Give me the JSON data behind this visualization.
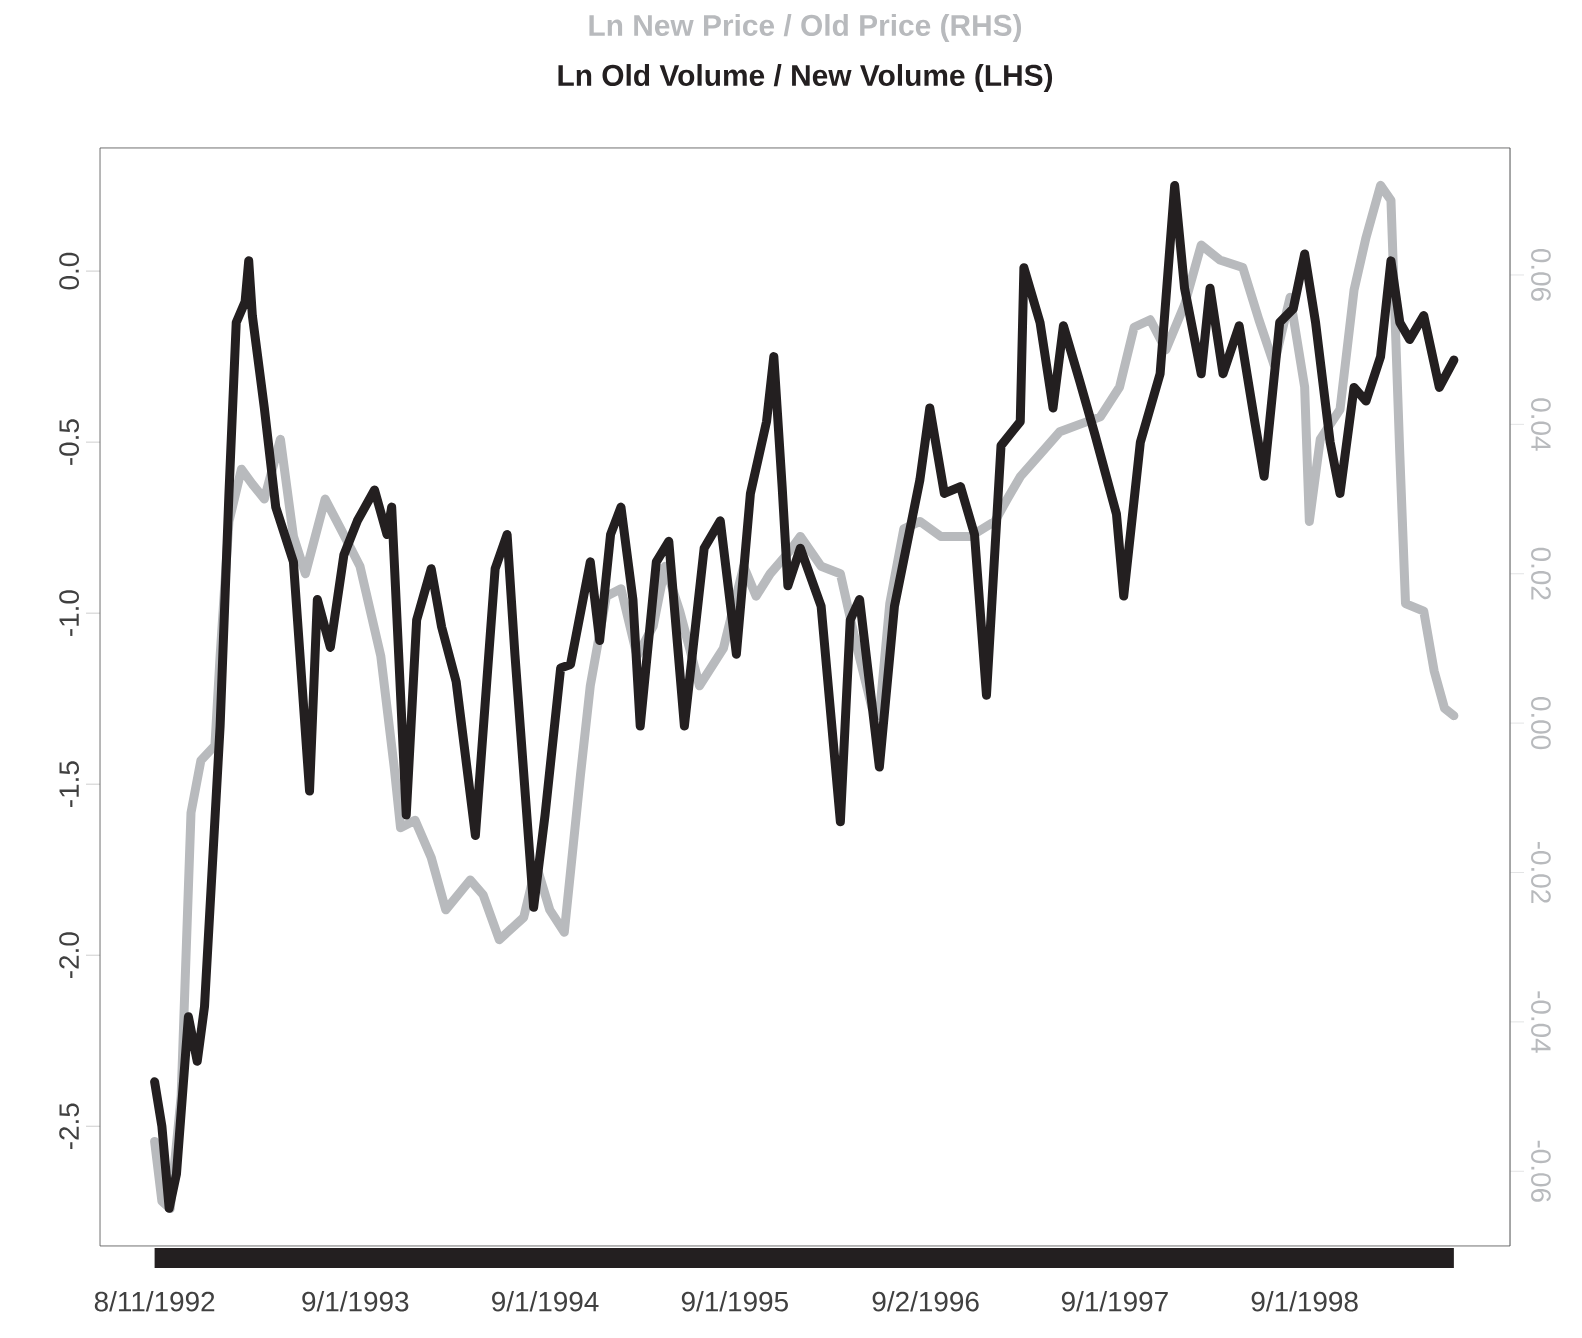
{
  "chart_data": {
    "type": "line",
    "xlim": [
      "1992-04-28",
      "1999-10-01"
    ],
    "xticks": [
      {
        "value": "1992-08-11",
        "label": "8/11/1992"
      },
      {
        "value": "1993-09-01",
        "label": "9/1/1993"
      },
      {
        "value": "1994-09-01",
        "label": "9/1/1994"
      },
      {
        "value": "1995-09-01",
        "label": "9/1/1995"
      },
      {
        "value": "1996-09-02",
        "label": "9/2/1996"
      },
      {
        "value": "1997-09-01",
        "label": "9/1/1997"
      },
      {
        "value": "1998-09-01",
        "label": "9/1/1998"
      }
    ],
    "ylim": [
      -2.85,
      0.36
    ],
    "yticks": [
      {
        "value": -2.5,
        "label": "-2.5"
      },
      {
        "value": -2.0,
        "label": "-2.0"
      },
      {
        "value": -1.5,
        "label": "-1.5"
      },
      {
        "value": -1.0,
        "label": "-1.0"
      },
      {
        "value": -0.5,
        "label": "-0.5"
      },
      {
        "value": 0,
        "label": "0.0"
      }
    ],
    "y2lim": [
      -0.07,
      0.077
    ],
    "y2ticks": [
      {
        "value": -0.06,
        "label": "-0.06"
      },
      {
        "value": -0.04,
        "label": "-0.04"
      },
      {
        "value": -0.02,
        "label": "-0.02"
      },
      {
        "value": 0,
        "label": "0.00"
      },
      {
        "value": 0.02,
        "label": "0.02"
      },
      {
        "value": 0.04,
        "label": "0.04"
      },
      {
        "value": 0.06,
        "label": "0.06"
      }
    ],
    "series": [
      {
        "name": "Ln New Price / Old Price (RHS)",
        "color": "#b8babd",
        "axis": "y2",
        "x": [
          "1992-08-11",
          "1992-08-25",
          "1992-09-10",
          "1992-10-01",
          "1992-10-20",
          "1992-11-08",
          "1992-12-05",
          "1992-12-15",
          "1993-01-01",
          "1993-01-25",
          "1993-02-15",
          "1993-03-10",
          "1993-04-10",
          "1993-05-05",
          "1993-05-28",
          "1993-07-05",
          "1993-08-04",
          "1993-09-10",
          "1993-10-20",
          "1993-11-15",
          "1993-11-27",
          "1993-12-25",
          "1994-01-25",
          "1994-02-22",
          "1994-04-10",
          "1994-05-05",
          "1994-06-05",
          "1994-07-22",
          "1994-08-15",
          "1994-09-10",
          "1994-10-08",
          "1994-11-08",
          "1994-11-27",
          "1994-12-28",
          "1995-01-25",
          "1995-02-25",
          "1995-03-28",
          "1995-04-20",
          "1995-05-18",
          "1995-06-25",
          "1995-08-10",
          "1995-09-18",
          "1995-10-12",
          "1995-11-08",
          "1995-12-15",
          "1996-01-05",
          "1996-02-14",
          "1996-03-22",
          "1996-04-20",
          "1996-05-22",
          "1996-06-05",
          "1996-06-25",
          "1996-07-22",
          "1996-08-22",
          "1996-10-01",
          "1996-11-27",
          "1997-01-13",
          "1997-02-06",
          "1997-03-03",
          "1997-04-10",
          "1997-05-18",
          "1997-06-25",
          "1997-08-04",
          "1997-09-10",
          "1997-10-08",
          "1997-11-08",
          "1997-12-08",
          "1998-01-13",
          "1998-02-14",
          "1998-03-22",
          "1998-05-05",
          "1998-06-05",
          "1998-07-04",
          "1998-08-04",
          "1998-09-01",
          "1998-09-10",
          "1998-10-01",
          "1998-11-08",
          "1998-12-05",
          "1998-12-28",
          "1999-01-25",
          "1999-02-14",
          "1999-03-03",
          "1999-03-14",
          "1999-04-18",
          "1999-05-08",
          "1999-05-28",
          "1999-06-15"
        ],
        "values": [
          -0.056,
          -0.064,
          -0.065,
          -0.05,
          -0.012,
          -0.005,
          -0.003,
          0.009,
          0.027,
          0.034,
          0.032,
          0.03,
          0.038,
          0.025,
          0.02,
          0.03,
          0.026,
          0.021,
          0.009,
          -0.006,
          -0.014,
          -0.013,
          -0.018,
          -0.025,
          -0.021,
          -0.023,
          -0.029,
          -0.026,
          -0.019,
          -0.025,
          -0.028,
          -0.007,
          0.005,
          0.017,
          0.018,
          0.009,
          0.013,
          0.021,
          0.015,
          0.005,
          0.01,
          0.021,
          0.017,
          0.02,
          0.023,
          0.025,
          0.021,
          0.02,
          0.011,
          0.002,
          0.001,
          0.016,
          0.026,
          0.027,
          0.025,
          0.025,
          0.027,
          0.03,
          0.033,
          0.036,
          0.039,
          0.04,
          0.041,
          0.045,
          0.053,
          0.054,
          0.05,
          0.056,
          0.064,
          0.062,
          0.061,
          0.054,
          0.048,
          0.057,
          0.045,
          0.027,
          0.038,
          0.042,
          0.058,
          0.065,
          0.072,
          0.07,
          0.036,
          0.016,
          0.015,
          0.007,
          0.002,
          0.001
        ]
      },
      {
        "name": "Ln Old Volume / New Volume (LHS)",
        "color": "#231f20",
        "x": [
          "1992-08-11",
          "1992-08-25",
          "1992-09-08",
          "1992-09-22",
          "1992-10-15",
          "1992-11-01",
          "1992-11-15",
          "1992-12-15",
          "1993-01-01",
          "1993-01-15",
          "1993-02-01",
          "1993-02-08",
          "1993-02-15",
          "1993-03-10",
          "1993-04-01",
          "1993-05-05",
          "1993-06-05",
          "1993-06-20",
          "1993-07-15",
          "1993-08-10",
          "1993-09-05",
          "1993-10-08",
          "1993-11-01",
          "1993-11-10",
          "1993-12-08",
          "1993-12-28",
          "1994-01-25",
          "1994-02-14",
          "1994-03-14",
          "1994-04-20",
          "1994-05-28",
          "1994-06-20",
          "1994-07-05",
          "1994-08-10",
          "1994-09-01",
          "1994-10-01",
          "1994-10-20",
          "1994-11-27",
          "1994-12-15",
          "1995-01-05",
          "1995-01-25",
          "1995-02-17",
          "1995-03-03",
          "1995-04-03",
          "1995-04-27",
          "1995-05-27",
          "1995-07-04",
          "1995-08-04",
          "1995-09-04",
          "1995-10-01",
          "1995-11-01",
          "1995-11-15",
          "1995-12-01",
          "1995-12-12",
          "1996-01-05",
          "1996-02-14",
          "1996-03-22",
          "1996-04-10",
          "1996-04-28",
          "1996-06-05",
          "1996-07-04",
          "1996-08-22",
          "1996-09-10",
          "1996-10-08",
          "1996-11-08",
          "1996-12-05",
          "1996-12-28",
          "1997-01-25",
          "1997-03-03",
          "1997-03-10",
          "1997-04-10",
          "1997-05-05",
          "1997-05-25",
          "1997-06-25",
          "1997-07-25",
          "1997-09-04",
          "1997-09-18",
          "1997-10-20",
          "1997-11-27",
          "1997-12-25",
          "1998-01-13",
          "1998-02-14",
          "1998-03-03",
          "1998-03-28",
          "1998-04-28",
          "1998-05-28",
          "1998-06-15",
          "1998-07-15",
          "1998-08-10",
          "1998-09-01",
          "1998-09-22",
          "1998-10-20",
          "1998-11-08",
          "1998-12-05",
          "1998-12-28",
          "1999-01-25",
          "1999-02-14",
          "1999-03-03",
          "1999-03-22",
          "1999-04-18",
          "1999-05-18",
          "1999-06-15"
        ],
        "values": [
          -2.37,
          -2.5,
          -2.74,
          -2.64,
          -2.18,
          -2.31,
          -2.15,
          -1.33,
          -0.65,
          -0.15,
          -0.09,
          0.03,
          -0.13,
          -0.4,
          -0.69,
          -0.85,
          -1.52,
          -0.96,
          -1.1,
          -0.83,
          -0.73,
          -0.64,
          -0.77,
          -0.69,
          -1.59,
          -1.02,
          -0.87,
          -1.04,
          -1.2,
          -1.65,
          -0.87,
          -0.77,
          -1.12,
          -1.86,
          -1.59,
          -1.16,
          -1.15,
          -0.85,
          -1.08,
          -0.77,
          -0.69,
          -0.96,
          -1.33,
          -0.85,
          -0.79,
          -1.33,
          -0.81,
          -0.73,
          -1.12,
          -0.65,
          -0.44,
          -0.25,
          -0.63,
          -0.92,
          -0.81,
          -0.98,
          -1.61,
          -1.02,
          -0.96,
          -1.45,
          -0.98,
          -0.61,
          -0.4,
          -0.65,
          -0.63,
          -0.77,
          -1.24,
          -0.51,
          -0.44,
          0.01,
          -0.15,
          -0.4,
          -0.16,
          -0.32,
          -0.48,
          -0.71,
          -0.95,
          -0.5,
          -0.3,
          0.25,
          -0.05,
          -0.3,
          -0.05,
          -0.3,
          -0.16,
          -0.44,
          -0.6,
          -0.15,
          -0.11,
          0.05,
          -0.15,
          -0.5,
          -0.65,
          -0.34,
          -0.38,
          -0.25,
          0.03,
          -0.15,
          -0.2,
          -0.13,
          -0.34,
          -0.26
        ]
      }
    ]
  }
}
